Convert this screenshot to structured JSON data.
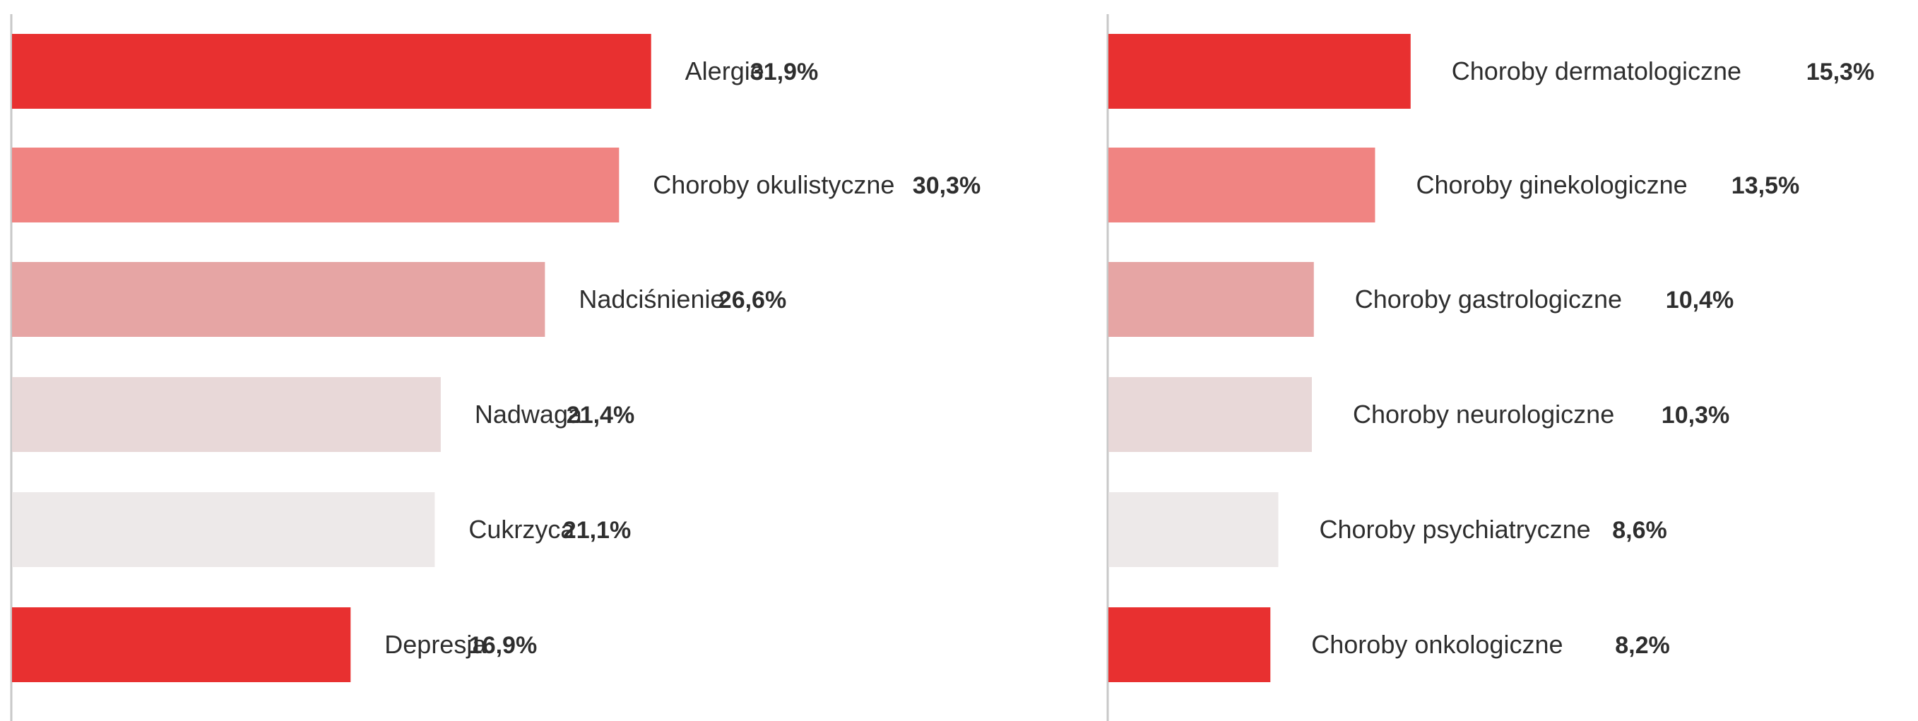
{
  "chart_data": [
    {
      "type": "bar",
      "orientation": "horizontal",
      "categories": [
        "Alergie",
        "Choroby okulistyczne",
        "Nadciśnienie",
        "Nadwaga",
        "Cukrzyca",
        "Depresja"
      ],
      "values": [
        31.9,
        30.3,
        26.6,
        21.4,
        21.1,
        16.9
      ],
      "value_labels": [
        "31,9%",
        "30,3%",
        "26,6%",
        "21,4%",
        "21,1%",
        "16,9%"
      ],
      "bar_colors": [
        "#e83030",
        "#f08482",
        "#e6a5a4",
        "#e8d8d8",
        "#ede9e9",
        "#e83030"
      ],
      "grid": false,
      "legend": "none"
    },
    {
      "type": "bar",
      "orientation": "horizontal",
      "categories": [
        "Choroby dermatologiczne",
        "Choroby ginekologiczne",
        "Choroby gastrologiczne",
        "Choroby neurologiczne",
        "Choroby psychiatryczne",
        "Choroby onkologiczne"
      ],
      "values": [
        15.3,
        13.5,
        10.4,
        10.3,
        8.6,
        8.2
      ],
      "value_labels": [
        "15,3%",
        "13,5%",
        "10,4%",
        "10,3%",
        "8,6%",
        "8,2%"
      ],
      "bar_colors": [
        "#e83030",
        "#f08482",
        "#e6a5a4",
        "#e8d8d8",
        "#ede9e9",
        "#e83030"
      ],
      "grid": false,
      "legend": "none"
    }
  ],
  "colors": {
    "axis": "#c8c8c8",
    "text": "#2e2e2e"
  }
}
